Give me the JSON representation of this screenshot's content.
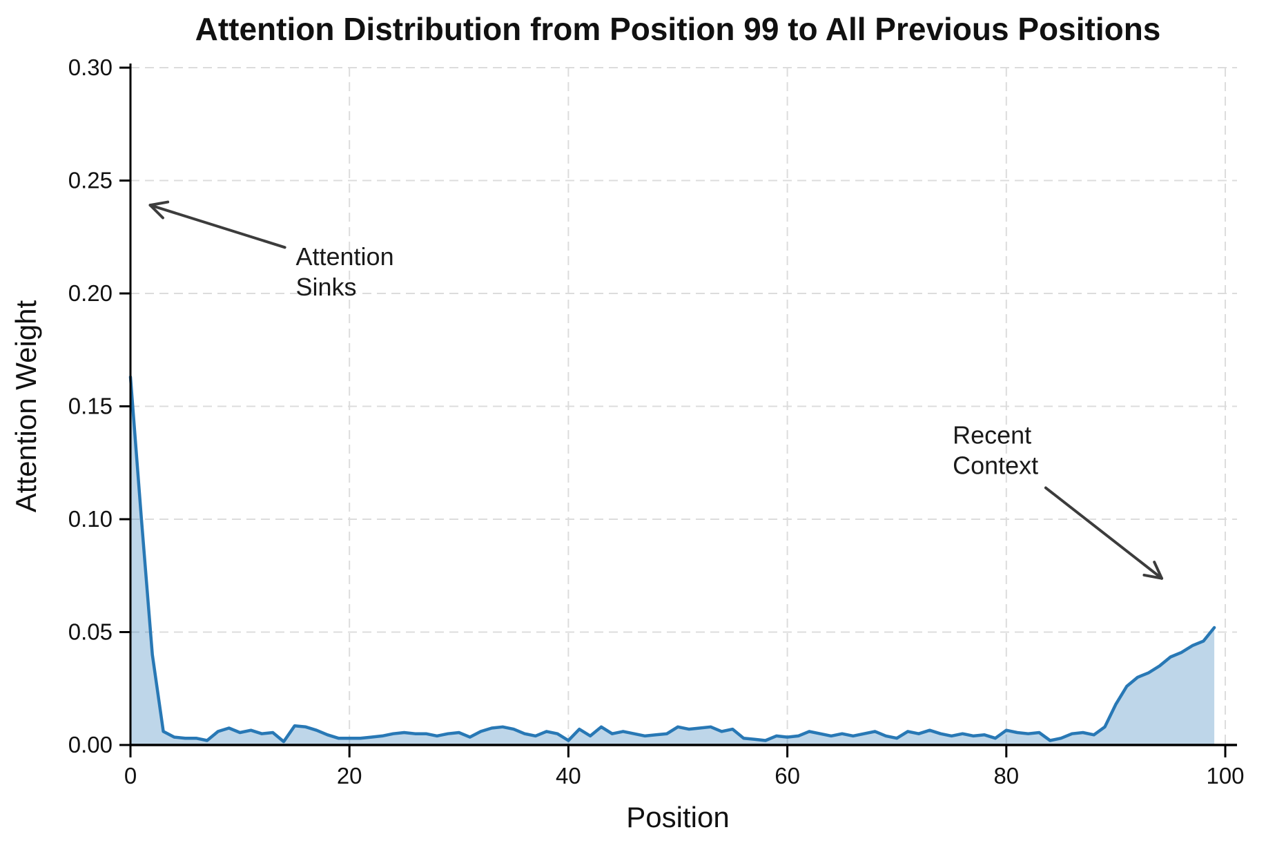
{
  "chart_data": {
    "type": "area",
    "title": "Attention Distribution from Position 99 to All Previous Positions",
    "xlabel": "Position",
    "ylabel": "Attention Weight",
    "xlim": [
      0,
      100
    ],
    "ylim": [
      0,
      0.3
    ],
    "xticks": [
      0,
      20,
      40,
      60,
      80,
      100
    ],
    "yticks": [
      0.0,
      0.05,
      0.1,
      0.15,
      0.2,
      0.25,
      0.3
    ],
    "grid": true,
    "grid_style": "dashed",
    "grid_color": "#dcdcdc",
    "legend": "none",
    "line_color": "#2878b5",
    "fill_color": "rgba(40,120,181,0.30)",
    "annotation_arrow_color": "#3c3c3c",
    "x": [
      0,
      1,
      2,
      3,
      4,
      5,
      6,
      7,
      8,
      9,
      10,
      11,
      12,
      13,
      14,
      15,
      16,
      17,
      18,
      19,
      20,
      21,
      22,
      23,
      24,
      25,
      26,
      27,
      28,
      29,
      30,
      31,
      32,
      33,
      34,
      35,
      36,
      37,
      38,
      39,
      40,
      41,
      42,
      43,
      44,
      45,
      46,
      47,
      48,
      49,
      50,
      51,
      52,
      53,
      54,
      55,
      56,
      57,
      58,
      59,
      60,
      61,
      62,
      63,
      64,
      65,
      66,
      67,
      68,
      69,
      70,
      71,
      72,
      73,
      74,
      75,
      76,
      77,
      78,
      79,
      80,
      81,
      82,
      83,
      84,
      85,
      86,
      87,
      88,
      89,
      90,
      91,
      92,
      93,
      94,
      95,
      96,
      97,
      98,
      99
    ],
    "values": [
      0.163,
      0.1,
      0.04,
      0.006,
      0.0035,
      0.003,
      0.003,
      0.002,
      0.006,
      0.0075,
      0.0055,
      0.0065,
      0.005,
      0.0055,
      0.0015,
      0.0085,
      0.008,
      0.0065,
      0.0045,
      0.003,
      0.003,
      0.003,
      0.0035,
      0.004,
      0.005,
      0.0055,
      0.005,
      0.005,
      0.004,
      0.005,
      0.0055,
      0.0035,
      0.006,
      0.0075,
      0.008,
      0.007,
      0.005,
      0.004,
      0.006,
      0.005,
      0.002,
      0.007,
      0.004,
      0.008,
      0.005,
      0.006,
      0.005,
      0.004,
      0.0045,
      0.005,
      0.008,
      0.007,
      0.0075,
      0.008,
      0.006,
      0.007,
      0.003,
      0.0025,
      0.002,
      0.004,
      0.0035,
      0.004,
      0.006,
      0.005,
      0.004,
      0.005,
      0.004,
      0.005,
      0.006,
      0.004,
      0.003,
      0.006,
      0.005,
      0.0065,
      0.005,
      0.004,
      0.005,
      0.004,
      0.0045,
      0.003,
      0.0065,
      0.0055,
      0.005,
      0.0055,
      0.002,
      0.003,
      0.005,
      0.0055,
      0.0045,
      0.008,
      0.018,
      0.026,
      0.03,
      0.032,
      0.035,
      0.039,
      0.041,
      0.044,
      0.046,
      0.052
    ],
    "annotations": [
      {
        "id": "attention-sinks",
        "label": "Attention Sinks",
        "lines": [
          "Attention",
          "Sinks"
        ],
        "text_pos": [
          15.1,
          0.2125
        ],
        "arrow_from": [
          14.1,
          0.2204
        ],
        "arrow_to": [
          1.8,
          0.2391
        ]
      },
      {
        "id": "recent-context",
        "label": "Recent Context",
        "lines": [
          "Recent",
          "Context"
        ],
        "text_pos": [
          75.1,
          0.1335
        ],
        "arrow_from": [
          83.6,
          0.1139
        ],
        "arrow_to": [
          94.2,
          0.0738
        ]
      }
    ]
  }
}
